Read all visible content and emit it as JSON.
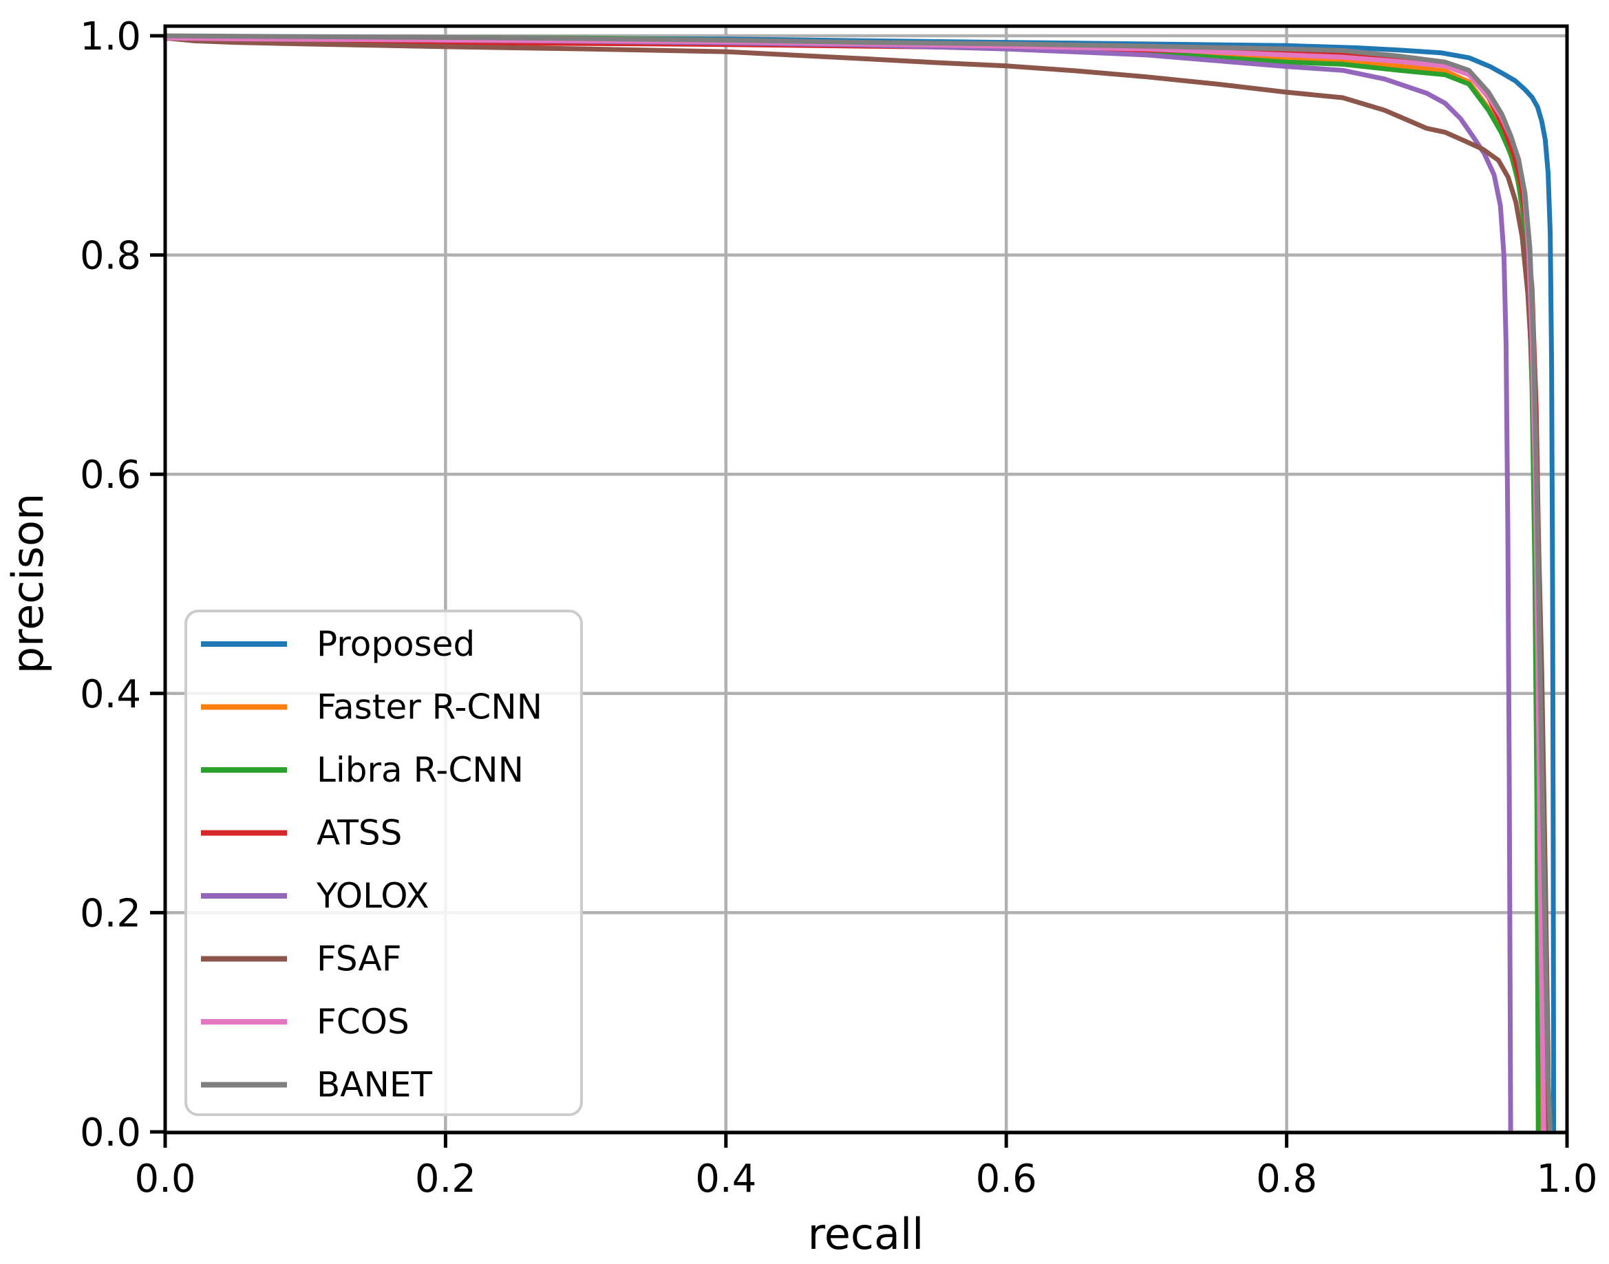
{
  "figure": {
    "background": "#ffffff",
    "grid_color": "#b0b0b0",
    "spine_color": "#000000",
    "legend_border_color": "#cccccc",
    "legend_background": "#ffffff"
  },
  "chart_data": {
    "type": "line",
    "title": "",
    "xlabel": "recall",
    "ylabel": "precison",
    "xlim": [
      0.0,
      1.0
    ],
    "ylim": [
      0.0,
      1.0
    ],
    "grid": true,
    "legend_position": "lower left",
    "xticks": [
      0.0,
      0.2,
      0.4,
      0.6,
      0.8,
      1.0
    ],
    "xtick_labels": [
      "0.0",
      "0.2",
      "0.4",
      "0.6",
      "0.8",
      "1.0"
    ],
    "yticks": [
      0.0,
      0.2,
      0.4,
      0.6,
      0.8,
      1.0
    ],
    "ytick_labels": [
      "0.0",
      "0.2",
      "0.4",
      "0.6",
      "0.8",
      "1.0"
    ],
    "series": [
      {
        "name": "Proposed",
        "color": "#1f77b4",
        "points": [
          [
            0,
            0.999
          ],
          [
            0.1,
            0.9985
          ],
          [
            0.2,
            0.998
          ],
          [
            0.3,
            0.9975
          ],
          [
            0.4,
            0.997
          ],
          [
            0.5,
            0.9955
          ],
          [
            0.6,
            0.994
          ],
          [
            0.7,
            0.9925
          ],
          [
            0.8,
            0.991
          ],
          [
            0.85,
            0.989
          ],
          [
            0.88,
            0.987
          ],
          [
            0.91,
            0.9845
          ],
          [
            0.93,
            0.98
          ],
          [
            0.945,
            0.972
          ],
          [
            0.955,
            0.965
          ],
          [
            0.963,
            0.959
          ],
          [
            0.97,
            0.951
          ],
          [
            0.975,
            0.944
          ],
          [
            0.979,
            0.935
          ],
          [
            0.982,
            0.922
          ],
          [
            0.9845,
            0.905
          ],
          [
            0.9865,
            0.875
          ],
          [
            0.988,
            0.82
          ],
          [
            0.989,
            0.7
          ],
          [
            0.9897,
            0.5
          ],
          [
            0.9902,
            0.25
          ],
          [
            0.9905,
            0.0
          ]
        ]
      },
      {
        "name": "Faster R-CNN",
        "color": "#ff7f0e",
        "points": [
          [
            0,
            0.999
          ],
          [
            0.1,
            0.998
          ],
          [
            0.2,
            0.9975
          ],
          [
            0.3,
            0.9965
          ],
          [
            0.4,
            0.995
          ],
          [
            0.5,
            0.993
          ],
          [
            0.6,
            0.991
          ],
          [
            0.7,
            0.987
          ],
          [
            0.8,
            0.98
          ],
          [
            0.84,
            0.978
          ],
          [
            0.88,
            0.9725
          ],
          [
            0.913,
            0.968
          ],
          [
            0.93,
            0.958
          ],
          [
            0.944,
            0.934
          ],
          [
            0.955,
            0.908
          ],
          [
            0.962,
            0.884
          ],
          [
            0.967,
            0.855
          ],
          [
            0.971,
            0.81
          ],
          [
            0.9745,
            0.74
          ],
          [
            0.977,
            0.62
          ],
          [
            0.9795,
            0.42
          ],
          [
            0.981,
            0.2
          ],
          [
            0.982,
            0.0
          ]
        ]
      },
      {
        "name": "Libra R-CNN",
        "color": "#2ca02c",
        "points": [
          [
            0,
            0.9995
          ],
          [
            0.1,
            0.999
          ],
          [
            0.2,
            0.9985
          ],
          [
            0.3,
            0.998
          ],
          [
            0.4,
            0.996
          ],
          [
            0.5,
            0.9935
          ],
          [
            0.6,
            0.99
          ],
          [
            0.7,
            0.9845
          ],
          [
            0.8,
            0.976
          ],
          [
            0.84,
            0.974
          ],
          [
            0.88,
            0.9685
          ],
          [
            0.913,
            0.9645
          ],
          [
            0.93,
            0.956
          ],
          [
            0.944,
            0.932
          ],
          [
            0.953,
            0.912
          ],
          [
            0.96,
            0.892
          ],
          [
            0.965,
            0.868
          ],
          [
            0.969,
            0.835
          ],
          [
            0.9725,
            0.78
          ],
          [
            0.975,
            0.68
          ],
          [
            0.977,
            0.52
          ],
          [
            0.9785,
            0.3
          ],
          [
            0.9795,
            0.0
          ]
        ]
      },
      {
        "name": "ATSS",
        "color": "#d62728",
        "points": [
          [
            0,
            0.999
          ],
          [
            0.02,
            0.997
          ],
          [
            0.05,
            0.9945
          ],
          [
            0.08,
            0.9935
          ],
          [
            0.12,
            0.9937
          ],
          [
            0.2,
            0.9935
          ],
          [
            0.3,
            0.993
          ],
          [
            0.4,
            0.992
          ],
          [
            0.5,
            0.9905
          ],
          [
            0.6,
            0.989
          ],
          [
            0.7,
            0.987
          ],
          [
            0.8,
            0.9845
          ],
          [
            0.84,
            0.9835
          ],
          [
            0.88,
            0.979
          ],
          [
            0.913,
            0.974
          ],
          [
            0.93,
            0.965
          ],
          [
            0.944,
            0.944
          ],
          [
            0.955,
            0.916
          ],
          [
            0.962,
            0.892
          ],
          [
            0.967,
            0.866
          ],
          [
            0.971,
            0.83
          ],
          [
            0.975,
            0.77
          ],
          [
            0.978,
            0.66
          ],
          [
            0.9805,
            0.48
          ],
          [
            0.9825,
            0.28
          ],
          [
            0.984,
            0.1
          ],
          [
            0.9845,
            0.0
          ]
        ]
      },
      {
        "name": "YOLOX",
        "color": "#9467bd",
        "points": [
          [
            0,
            0.9975
          ],
          [
            0.1,
            0.997
          ],
          [
            0.2,
            0.996
          ],
          [
            0.3,
            0.995
          ],
          [
            0.4,
            0.9935
          ],
          [
            0.5,
            0.9915
          ],
          [
            0.6,
            0.988
          ],
          [
            0.7,
            0.9825
          ],
          [
            0.8,
            0.972
          ],
          [
            0.84,
            0.9685
          ],
          [
            0.87,
            0.9605
          ],
          [
            0.9,
            0.9475
          ],
          [
            0.913,
            0.9385
          ],
          [
            0.924,
            0.9245
          ],
          [
            0.933,
            0.908
          ],
          [
            0.941,
            0.8925
          ],
          [
            0.948,
            0.873
          ],
          [
            0.9525,
            0.845
          ],
          [
            0.955,
            0.8
          ],
          [
            0.9565,
            0.72
          ],
          [
            0.9578,
            0.55
          ],
          [
            0.9588,
            0.32
          ],
          [
            0.9595,
            0.1
          ],
          [
            0.9598,
            0.0
          ]
        ]
      },
      {
        "name": "FSAF",
        "color": "#8c564b",
        "points": [
          [
            0,
            0.998
          ],
          [
            0.02,
            0.9955
          ],
          [
            0.05,
            0.994
          ],
          [
            0.1,
            0.9925
          ],
          [
            0.2,
            0.99
          ],
          [
            0.3,
            0.988
          ],
          [
            0.4,
            0.9855
          ],
          [
            0.5,
            0.979
          ],
          [
            0.55,
            0.9755
          ],
          [
            0.6,
            0.9725
          ],
          [
            0.65,
            0.968
          ],
          [
            0.7,
            0.9625
          ],
          [
            0.75,
            0.956
          ],
          [
            0.8,
            0.9485
          ],
          [
            0.84,
            0.9435
          ],
          [
            0.87,
            0.932
          ],
          [
            0.9,
            0.9155
          ],
          [
            0.913,
            0.912
          ],
          [
            0.928,
            0.9035
          ],
          [
            0.94,
            0.8965
          ],
          [
            0.951,
            0.8865
          ],
          [
            0.958,
            0.871
          ],
          [
            0.9635,
            0.8485
          ],
          [
            0.968,
            0.8165
          ],
          [
            0.972,
            0.765
          ],
          [
            0.9755,
            0.6905
          ],
          [
            0.979,
            0.575
          ],
          [
            0.982,
            0.42
          ],
          [
            0.9845,
            0.235
          ],
          [
            0.9865,
            0.07
          ],
          [
            0.987,
            0.0
          ]
        ]
      },
      {
        "name": "FCOS",
        "color": "#e377c2",
        "points": [
          [
            0,
            0.998
          ],
          [
            0.05,
            0.9972
          ],
          [
            0.1,
            0.9968
          ],
          [
            0.2,
            0.9962
          ],
          [
            0.3,
            0.9955
          ],
          [
            0.4,
            0.9945
          ],
          [
            0.5,
            0.9925
          ],
          [
            0.6,
            0.9905
          ],
          [
            0.7,
            0.988
          ],
          [
            0.8,
            0.9825
          ],
          [
            0.84,
            0.9805
          ],
          [
            0.88,
            0.9765
          ],
          [
            0.913,
            0.9725
          ],
          [
            0.93,
            0.9645
          ],
          [
            0.944,
            0.9445
          ],
          [
            0.953,
            0.9265
          ],
          [
            0.96,
            0.9075
          ],
          [
            0.9655,
            0.8875
          ],
          [
            0.9695,
            0.8575
          ],
          [
            0.9725,
            0.8075
          ],
          [
            0.975,
            0.7275
          ],
          [
            0.9775,
            0.5875
          ],
          [
            0.9795,
            0.4
          ],
          [
            0.981,
            0.21
          ],
          [
            0.9835,
            0.0
          ]
        ]
      },
      {
        "name": "BANET",
        "color": "#7f7f7f",
        "points": [
          [
            0,
            1.0
          ],
          [
            0.1,
            0.9992
          ],
          [
            0.2,
            0.9985
          ],
          [
            0.3,
            0.9975
          ],
          [
            0.4,
            0.996
          ],
          [
            0.5,
            0.994
          ],
          [
            0.6,
            0.9925
          ],
          [
            0.7,
            0.9905
          ],
          [
            0.8,
            0.988
          ],
          [
            0.84,
            0.9865
          ],
          [
            0.88,
            0.9815
          ],
          [
            0.913,
            0.976
          ],
          [
            0.93,
            0.9685
          ],
          [
            0.944,
            0.9485
          ],
          [
            0.9535,
            0.9285
          ],
          [
            0.96,
            0.9085
          ],
          [
            0.9655,
            0.8865
          ],
          [
            0.97,
            0.8565
          ],
          [
            0.9735,
            0.8065
          ],
          [
            0.976,
            0.7265
          ],
          [
            0.9785,
            0.5865
          ],
          [
            0.981,
            0.4
          ],
          [
            0.984,
            0.2
          ],
          [
            0.9865,
            0.05
          ],
          [
            0.988,
            0.0
          ]
        ]
      }
    ]
  }
}
